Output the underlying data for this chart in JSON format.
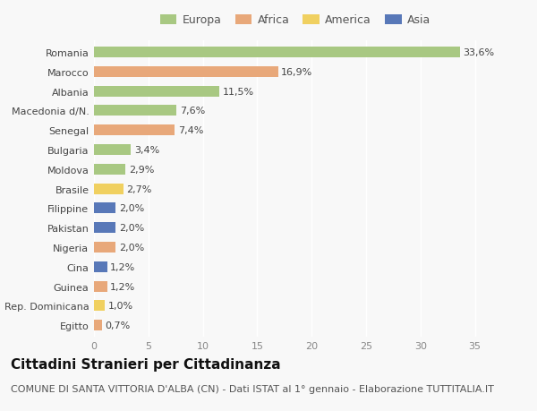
{
  "categories": [
    "Romania",
    "Marocco",
    "Albania",
    "Macedonia d/N.",
    "Senegal",
    "Bulgaria",
    "Moldova",
    "Brasile",
    "Filippine",
    "Pakistan",
    "Nigeria",
    "Cina",
    "Guinea",
    "Rep. Dominicana",
    "Egitto"
  ],
  "values": [
    33.6,
    16.9,
    11.5,
    7.6,
    7.4,
    3.4,
    2.9,
    2.7,
    2.0,
    2.0,
    2.0,
    1.2,
    1.2,
    1.0,
    0.7
  ],
  "labels": [
    "33,6%",
    "16,9%",
    "11,5%",
    "7,6%",
    "7,4%",
    "3,4%",
    "2,9%",
    "2,7%",
    "2,0%",
    "2,0%",
    "2,0%",
    "1,2%",
    "1,2%",
    "1,0%",
    "0,7%"
  ],
  "continents": [
    "Europa",
    "Africa",
    "Europa",
    "Europa",
    "Africa",
    "Europa",
    "Europa",
    "America",
    "Asia",
    "Asia",
    "Africa",
    "Asia",
    "Africa",
    "America",
    "Africa"
  ],
  "colors": {
    "Europa": "#a8c882",
    "Africa": "#e8a87a",
    "America": "#f0d060",
    "Asia": "#5878b8"
  },
  "legend_labels": [
    "Europa",
    "Africa",
    "America",
    "Asia"
  ],
  "title": "Cittadini Stranieri per Cittadinanza",
  "subtitle": "COMUNE DI SANTA VITTORIA D'ALBA (CN) - Dati ISTAT al 1° gennaio - Elaborazione TUTTITALIA.IT",
  "xlim": [
    0,
    37
  ],
  "xticks": [
    0,
    5,
    10,
    15,
    20,
    25,
    30,
    35
  ],
  "background_color": "#f8f8f8",
  "bar_height": 0.55,
  "title_fontsize": 11,
  "subtitle_fontsize": 8,
  "label_fontsize": 8,
  "tick_fontsize": 8,
  "legend_fontsize": 9
}
